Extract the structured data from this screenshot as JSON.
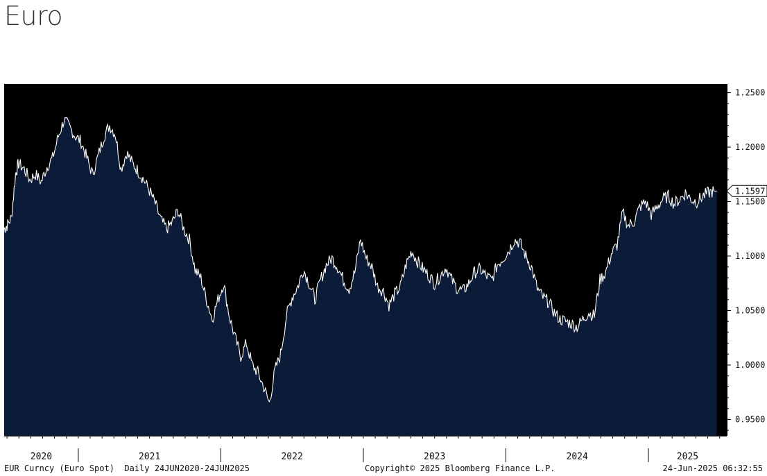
{
  "title": "Euro",
  "footer": {
    "left": "EUR Curncy (Euro Spot)  Daily 24JUN2020-24JUN2025",
    "center": "Copyright© 2025 Bloomberg Finance L.P.",
    "right": "24-Jun-2025 06:32:55"
  },
  "colors": {
    "plot_background": "#000000",
    "area_fill": "#0c1c38",
    "line": "#ffffff"
  },
  "chart_data": {
    "type": "area",
    "ylim": [
      0.935,
      1.258
    ],
    "xlim": [
      2020.48,
      2025.55
    ],
    "y_ticks": [
      "1.2500",
      "1.2000",
      "1.1500",
      "1.1000",
      "1.0500",
      "1.0000",
      "0.9500"
    ],
    "x_tick_labels": [
      "2020",
      "2021",
      "2022",
      "2023",
      "2024",
      "2025"
    ],
    "last_value_label": "1.1597",
    "series": [
      {
        "x": [
          2020.48,
          2020.5,
          2020.53,
          2020.56,
          2020.58,
          2020.62,
          2020.66,
          2020.7,
          2020.74,
          2020.78,
          2020.82,
          2020.86,
          2020.9,
          2020.94,
          2020.98,
          2021.02,
          2021.06,
          2021.1,
          2021.14,
          2021.18,
          2021.22,
          2021.26,
          2021.3,
          2021.34,
          2021.38,
          2021.42,
          2021.46,
          2021.5,
          2021.54,
          2021.58,
          2021.62,
          2021.66,
          2021.7,
          2021.74,
          2021.78,
          2021.82,
          2021.86,
          2021.9,
          2021.94,
          2021.98,
          2022.02,
          2022.06,
          2022.1,
          2022.14,
          2022.18,
          2022.22,
          2022.26,
          2022.3,
          2022.34,
          2022.38,
          2022.42,
          2022.46,
          2022.5,
          2022.54,
          2022.58,
          2022.62,
          2022.66,
          2022.7,
          2022.74,
          2022.78,
          2022.82,
          2022.86,
          2022.9,
          2022.94,
          2022.98,
          2023.02,
          2023.06,
          2023.1,
          2023.14,
          2023.18,
          2023.22,
          2023.26,
          2023.3,
          2023.34,
          2023.38,
          2023.42,
          2023.46,
          2023.5,
          2023.54,
          2023.58,
          2023.62,
          2023.66,
          2023.7,
          2023.74,
          2023.78,
          2023.82,
          2023.86,
          2023.9,
          2023.94,
          2023.98,
          2024.02,
          2024.06,
          2024.1,
          2024.14,
          2024.18,
          2024.22,
          2024.26,
          2024.3,
          2024.34,
          2024.38,
          2024.42,
          2024.46,
          2024.5,
          2024.54,
          2024.58,
          2024.62,
          2024.66,
          2024.7,
          2024.74,
          2024.78,
          2024.82,
          2024.86,
          2024.9,
          2024.94,
          2024.98,
          2025.02,
          2025.06,
          2025.1,
          2025.14,
          2025.18,
          2025.22,
          2025.26,
          2025.3,
          2025.34,
          2025.38,
          2025.42,
          2025.46,
          2025.48
        ],
        "values": [
          1.125,
          1.128,
          1.135,
          1.175,
          1.185,
          1.18,
          1.17,
          1.175,
          1.168,
          1.182,
          1.19,
          1.21,
          1.225,
          1.218,
          1.21,
          1.205,
          1.19,
          1.175,
          1.192,
          1.21,
          1.22,
          1.212,
          1.18,
          1.195,
          1.185,
          1.178,
          1.17,
          1.16,
          1.148,
          1.133,
          1.125,
          1.131,
          1.142,
          1.125,
          1.115,
          1.087,
          1.08,
          1.06,
          1.042,
          1.06,
          1.075,
          1.045,
          1.025,
          1.008,
          1.02,
          1.0,
          0.993,
          0.98,
          0.965,
          0.995,
          1.01,
          1.045,
          1.062,
          1.072,
          1.088,
          1.075,
          1.06,
          1.078,
          1.092,
          1.098,
          1.09,
          1.078,
          1.07,
          1.085,
          1.115,
          1.098,
          1.09,
          1.072,
          1.068,
          1.055,
          1.065,
          1.072,
          1.092,
          1.105,
          1.095,
          1.088,
          1.082,
          1.075,
          1.082,
          1.09,
          1.078,
          1.07,
          1.068,
          1.075,
          1.085,
          1.088,
          1.082,
          1.078,
          1.092,
          1.098,
          1.105,
          1.115,
          1.112,
          1.1,
          1.09,
          1.07,
          1.062,
          1.058,
          1.048,
          1.042,
          1.04,
          1.038,
          1.035,
          1.042,
          1.048,
          1.045,
          1.078,
          1.085,
          1.102,
          1.11,
          1.14,
          1.128,
          1.132,
          1.145,
          1.15,
          1.138,
          1.145,
          1.152,
          1.155,
          1.148,
          1.152,
          1.158,
          1.152,
          1.15,
          1.155,
          1.158,
          1.1597,
          1.1597
        ]
      }
    ]
  }
}
